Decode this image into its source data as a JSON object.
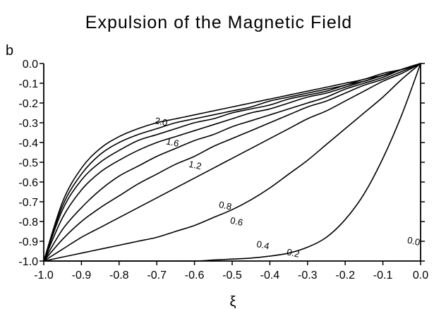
{
  "chart_data": {
    "type": "line",
    "title": "Expulsion of the Magnetic Field",
    "xlabel": "ξ",
    "ylabel": "b",
    "xlim": [
      -1.0,
      0.0
    ],
    "ylim": [
      -1.0,
      0.0
    ],
    "grid": false,
    "x_ticks": [
      "-1.0",
      "-0.9",
      "-0.8",
      "-0.7",
      "-0.6",
      "-0.5",
      "-0.4",
      "-0.3",
      "-0.2",
      "-0.1",
      "0.0"
    ],
    "y_ticks": [
      "0.0",
      "-0.1",
      "-0.2",
      "-0.3",
      "-0.4",
      "-0.5",
      "-0.6",
      "-0.7",
      "-0.8",
      "-0.9",
      "-1.0"
    ],
    "x": [
      -1.0,
      -0.95,
      -0.9,
      -0.85,
      -0.8,
      -0.75,
      -0.7,
      -0.65,
      -0.6,
      -0.55,
      -0.5,
      -0.45,
      -0.4,
      -0.35,
      -0.3,
      -0.25,
      -0.2,
      -0.15,
      -0.1,
      -0.05,
      0.0
    ],
    "series": [
      {
        "name": "2.0",
        "values": [
          -1.0,
          -0.7,
          -0.53,
          -0.43,
          -0.37,
          -0.33,
          -0.3,
          -0.28,
          -0.26,
          -0.24,
          -0.22,
          -0.2,
          -0.18,
          -0.16,
          -0.14,
          -0.12,
          -0.1,
          -0.08,
          -0.05,
          -0.03,
          0.0
        ]
      },
      {
        "name": "1.6",
        "values": [
          -1.0,
          -0.72,
          -0.56,
          -0.46,
          -0.4,
          -0.36,
          -0.33,
          -0.3,
          -0.28,
          -0.26,
          -0.24,
          -0.22,
          -0.19,
          -0.17,
          -0.15,
          -0.13,
          -0.11,
          -0.08,
          -0.06,
          -0.03,
          0.0
        ]
      },
      {
        "name": "",
        "values": [
          -1.0,
          -0.74,
          -0.59,
          -0.5,
          -0.44,
          -0.39,
          -0.36,
          -0.33,
          -0.3,
          -0.28,
          -0.25,
          -0.23,
          -0.21,
          -0.18,
          -0.16,
          -0.14,
          -0.11,
          -0.09,
          -0.06,
          -0.03,
          0.0
        ]
      },
      {
        "name": "1.2",
        "values": [
          -1.0,
          -0.78,
          -0.64,
          -0.55,
          -0.49,
          -0.44,
          -0.4,
          -0.37,
          -0.34,
          -0.31,
          -0.28,
          -0.25,
          -0.23,
          -0.2,
          -0.17,
          -0.15,
          -0.12,
          -0.09,
          -0.06,
          -0.03,
          0.0
        ]
      },
      {
        "name": "",
        "values": [
          -1.0,
          -0.84,
          -0.73,
          -0.64,
          -0.57,
          -0.52,
          -0.47,
          -0.43,
          -0.39,
          -0.36,
          -0.32,
          -0.29,
          -0.26,
          -0.23,
          -0.2,
          -0.17,
          -0.13,
          -0.1,
          -0.07,
          -0.03,
          0.0
        ]
      },
      {
        "name": "0.8",
        "values": [
          -1.0,
          -0.89,
          -0.8,
          -0.73,
          -0.67,
          -0.61,
          -0.56,
          -0.51,
          -0.47,
          -0.42,
          -0.38,
          -0.34,
          -0.3,
          -0.26,
          -0.22,
          -0.19,
          -0.15,
          -0.11,
          -0.08,
          -0.04,
          0.0
        ]
      },
      {
        "name": "0.6",
        "values": [
          -1.0,
          -0.94,
          -0.88,
          -0.83,
          -0.78,
          -0.73,
          -0.68,
          -0.63,
          -0.58,
          -0.53,
          -0.48,
          -0.43,
          -0.38,
          -0.33,
          -0.28,
          -0.24,
          -0.19,
          -0.14,
          -0.09,
          -0.05,
          0.0
        ]
      },
      {
        "name": "0.4",
        "values": [
          -1.0,
          -0.98,
          -0.96,
          -0.94,
          -0.92,
          -0.9,
          -0.88,
          -0.85,
          -0.82,
          -0.78,
          -0.74,
          -0.69,
          -0.63,
          -0.56,
          -0.49,
          -0.41,
          -0.33,
          -0.25,
          -0.17,
          -0.08,
          0.0
        ]
      },
      {
        "name": "0.2",
        "values": [
          -1.0,
          -1.0,
          -1.0,
          -1.0,
          -1.0,
          -1.0,
          -1.0,
          -1.0,
          -1.0,
          -0.995,
          -0.99,
          -0.985,
          -0.975,
          -0.96,
          -0.93,
          -0.88,
          -0.79,
          -0.66,
          -0.48,
          -0.26,
          0.0
        ]
      }
    ],
    "annotations": [
      {
        "text": "2.0",
        "x": -0.69,
        "y": -0.31
      },
      {
        "text": "1.6",
        "x": -0.66,
        "y": -0.415
      },
      {
        "text": "1.2",
        "x": -0.6,
        "y": -0.53
      },
      {
        "text": "0.8",
        "x": -0.52,
        "y": -0.735
      },
      {
        "text": "0.6",
        "x": -0.49,
        "y": -0.815
      },
      {
        "text": "0.4",
        "x": -0.42,
        "y": -0.935
      },
      {
        "text": "0.2",
        "x": -0.34,
        "y": -0.975
      },
      {
        "text": "0.0",
        "x": -0.02,
        "y": -0.915
      }
    ]
  }
}
